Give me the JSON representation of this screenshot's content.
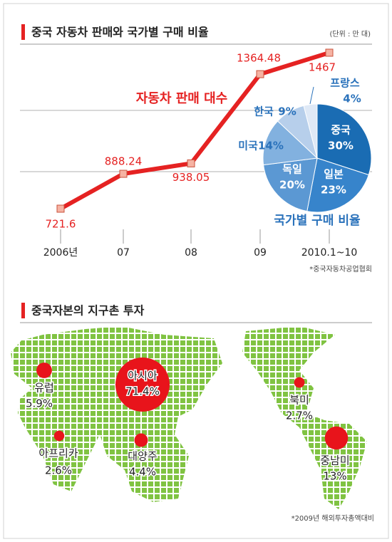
{
  "chart_data": [
    {
      "type": "line",
      "title": "중국 자동차 판매와 국가별 구매 비율",
      "unit": "(단위 : 만 대)",
      "label": "자동차 판매 대수",
      "categories": [
        "2006년",
        "07",
        "08",
        "09",
        "2010.1~10"
      ],
      "values": [
        721.6,
        888.24,
        938.05,
        1364.48,
        1467
      ],
      "color": "#e52222",
      "source": "*중국자동차공업협회"
    },
    {
      "type": "pie",
      "title": "국가별 구매 비율",
      "categories": [
        "중국",
        "일본",
        "독일",
        "미국",
        "한국",
        "프랑스"
      ],
      "values": [
        30,
        23,
        20,
        14,
        9,
        4
      ],
      "value_labels": [
        "30%",
        "23%",
        "20%",
        "14%",
        "9%",
        "4%"
      ],
      "colors": [
        "#1a6cb3",
        "#3784cb",
        "#5b98d3",
        "#82b1df",
        "#b7cfeb",
        "#dfe9f6"
      ]
    },
    {
      "type": "bubble_map",
      "title": "중국자본의 지구촌 투자",
      "categories": [
        "아시아",
        "유럽",
        "아프리카",
        "대양주",
        "북미",
        "중남미"
      ],
      "values": [
        71.4,
        5.9,
        2.6,
        4.4,
        2.7,
        13
      ],
      "value_labels": [
        "71.4%",
        "5.9%",
        "2.6%",
        "4.4%",
        "2.7%",
        "13%"
      ],
      "color": "#e8141b",
      "source": "*2009년 해외투자총액대비"
    }
  ]
}
